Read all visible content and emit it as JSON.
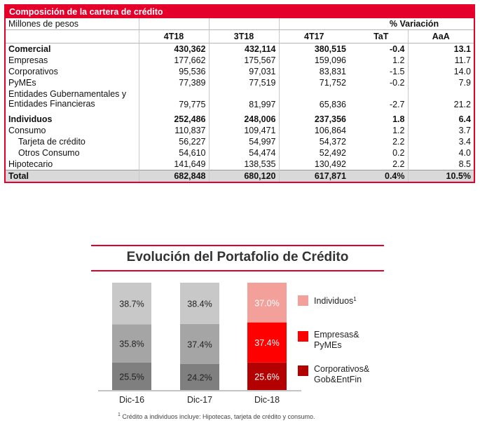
{
  "table": {
    "title": "Composición de la cartera de crédito",
    "unit_label": "Millones de pesos",
    "variation_label": "% Variación",
    "columns": [
      "4T18",
      "3T18",
      "4T17",
      "TaT",
      "AaA"
    ],
    "rows": [
      {
        "label": "Comercial",
        "values": [
          "430,362",
          "432,114",
          "380,515",
          "-0.4",
          "13.1"
        ],
        "style": "bold"
      },
      {
        "label": "Empresas",
        "values": [
          "177,662",
          "175,567",
          "159,096",
          "1.2",
          "11.7"
        ]
      },
      {
        "label": "Corporativos",
        "values": [
          "95,536",
          "97,031",
          "83,831",
          "-1.5",
          "14.0"
        ]
      },
      {
        "label": "PyMEs",
        "values": [
          "77,389",
          "77,519",
          "71,752",
          "-0.2",
          "7.9"
        ]
      },
      {
        "label": "Entidades Gubernamentales y Entidades Financieras",
        "values": [
          "79,775",
          "81,997",
          "65,836",
          "-2.7",
          "21.2"
        ],
        "style": "double"
      },
      {
        "label": "Individuos",
        "values": [
          "252,486",
          "248,006",
          "237,356",
          "1.8",
          "6.4"
        ],
        "style": "bold"
      },
      {
        "label": "Consumo",
        "values": [
          "110,837",
          "109,471",
          "106,864",
          "1.2",
          "3.7"
        ]
      },
      {
        "label": "Tarjeta de crédito",
        "values": [
          "56,227",
          "54,997",
          "54,372",
          "2.2",
          "3.4"
        ],
        "indent": true
      },
      {
        "label": "Otros Consumo",
        "values": [
          "54,610",
          "54,474",
          "52,492",
          "0.2",
          "4.0"
        ],
        "indent": true
      },
      {
        "label": "Hipotecario",
        "values": [
          "141,649",
          "138,535",
          "130,492",
          "2.2",
          "8.5"
        ]
      },
      {
        "label": "Total",
        "values": [
          "682,848",
          "680,120",
          "617,871",
          "0.4%",
          "10.5%"
        ],
        "style": "total"
      }
    ]
  },
  "chart_data": {
    "type": "bar",
    "stacked": true,
    "title": "Evolución del Portafolio de Crédito",
    "categories": [
      "Dic-16",
      "Dic-17",
      "Dic-18"
    ],
    "series": [
      {
        "name": "Corporativos& Gob&EntFin",
        "values": [
          25.5,
          24.2,
          25.6
        ],
        "labels": [
          "25.5%",
          "24.2%",
          "25.6%"
        ]
      },
      {
        "name": "Empresas& PyMEs",
        "values": [
          35.8,
          37.4,
          37.4
        ],
        "labels": [
          "35.8%",
          "37.4%",
          "37.4%"
        ]
      },
      {
        "name": "Individuos",
        "name_sup": "1",
        "values": [
          38.7,
          38.4,
          37.0
        ],
        "labels": [
          "38.7%",
          "38.4%",
          "37.0%"
        ]
      }
    ],
    "legend_position": "right",
    "colors": {
      "gray": [
        "#7f7f7f",
        "#a5a5a5",
        "#c8c8c8"
      ],
      "red": [
        "#b30000",
        "#ff0000",
        "#f4a09a"
      ]
    }
  },
  "footnote": {
    "marker": "1",
    "text": " Crédito a individuos incluye: Hipotecas, tarjeta de crédito y consumo."
  }
}
